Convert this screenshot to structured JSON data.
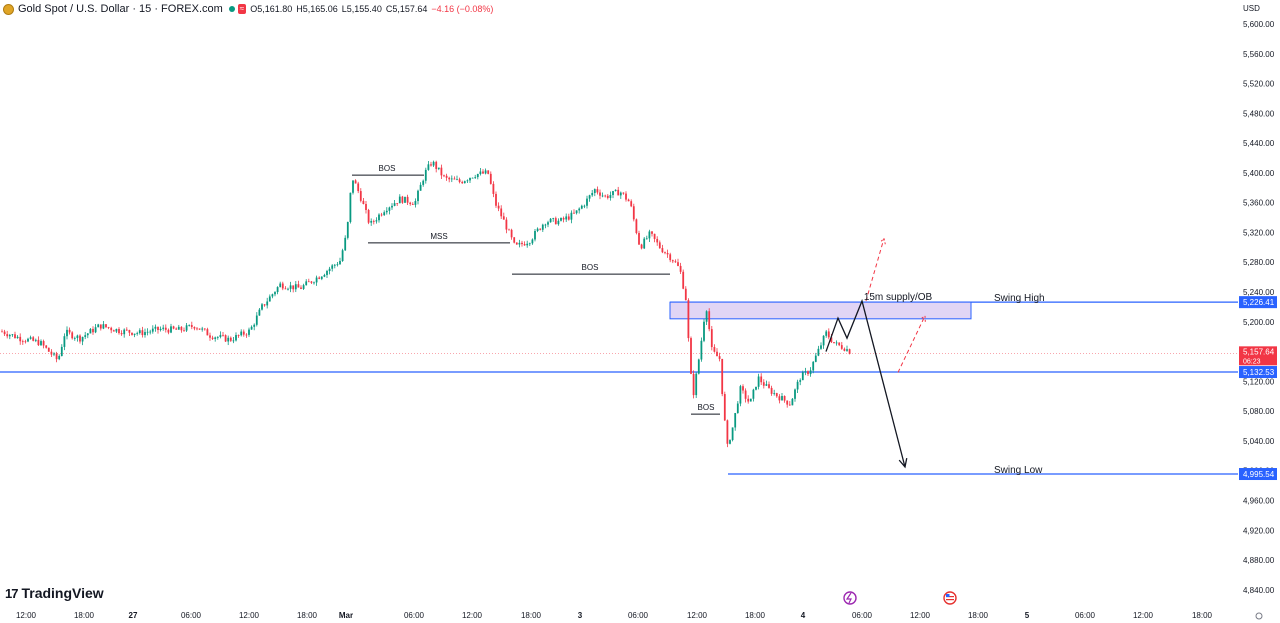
{
  "header": {
    "symbol_title": "Gold Spot / U.S. Dollar · 15 · FOREX.com",
    "open": "O5,161.80",
    "high": "H5,165.06",
    "low": "L5,155.40",
    "close": "C5,157.64",
    "change": "−4.16 (−0.08%)",
    "eq_icon": "≈"
  },
  "currency": "USD",
  "logo": {
    "mark": "17",
    "text": "TradingView"
  },
  "colors": {
    "up": "#089981",
    "down": "#f23645",
    "level": "#2962ff",
    "zone_fill": "#e1d5f5"
  },
  "chart_data": {
    "type": "candlestick",
    "y_axis": {
      "ticks": [
        "5,600.00",
        "5,560.00",
        "5,520.00",
        "5,480.00",
        "5,440.00",
        "5,400.00",
        "5,360.00",
        "5,320.00",
        "5,280.00",
        "5,240.00",
        "5,200.00",
        "5,160.00",
        "5,120.00",
        "5,080.00",
        "5,040.00",
        "5,000.00",
        "4,960.00",
        "4,920.00",
        "4,880.00",
        "4,840.00"
      ],
      "range": [
        4835,
        5620
      ]
    },
    "x_axis": {
      "ticks": [
        "12:00",
        "18:00",
        "27",
        "06:00",
        "12:00",
        "18:00",
        "Mar",
        "06:00",
        "12:00",
        "18:00",
        "3",
        "06:00",
        "12:00",
        "18:00",
        "4",
        "06:00",
        "12:00",
        "18:00",
        "5",
        "06:00",
        "12:00",
        "18:00"
      ]
    },
    "price_path": [
      [
        0,
        5188
      ],
      [
        20,
        5178
      ],
      [
        40,
        5172
      ],
      [
        58,
        5148
      ],
      [
        65,
        5186
      ],
      [
        80,
        5178
      ],
      [
        100,
        5195
      ],
      [
        120,
        5188
      ],
      [
        140,
        5185
      ],
      [
        160,
        5190
      ],
      [
        180,
        5189
      ],
      [
        195,
        5195
      ],
      [
        210,
        5182
      ],
      [
        230,
        5176
      ],
      [
        250,
        5188
      ],
      [
        262,
        5220
      ],
      [
        280,
        5250
      ],
      [
        300,
        5245
      ],
      [
        320,
        5262
      ],
      [
        340,
        5282
      ],
      [
        347,
        5320
      ],
      [
        352,
        5395
      ],
      [
        360,
        5370
      ],
      [
        370,
        5330
      ],
      [
        385,
        5352
      ],
      [
        400,
        5365
      ],
      [
        415,
        5360
      ],
      [
        425,
        5400
      ],
      [
        432,
        5415
      ],
      [
        445,
        5392
      ],
      [
        460,
        5388
      ],
      [
        475,
        5398
      ],
      [
        488,
        5400
      ],
      [
        495,
        5360
      ],
      [
        505,
        5332
      ],
      [
        515,
        5300
      ],
      [
        530,
        5310
      ],
      [
        545,
        5335
      ],
      [
        560,
        5335
      ],
      [
        575,
        5345
      ],
      [
        585,
        5360
      ],
      [
        595,
        5378
      ],
      [
        605,
        5368
      ],
      [
        620,
        5375
      ],
      [
        630,
        5360
      ],
      [
        640,
        5300
      ],
      [
        650,
        5318
      ],
      [
        660,
        5300
      ],
      [
        672,
        5285
      ],
      [
        680,
        5270
      ],
      [
        686,
        5230
      ],
      [
        690,
        5140
      ],
      [
        693,
        5100
      ],
      [
        700,
        5160
      ],
      [
        706,
        5225
      ],
      [
        712,
        5160
      ],
      [
        720,
        5150
      ],
      [
        722,
        5110
      ],
      [
        727,
        5030
      ],
      [
        733,
        5060
      ],
      [
        740,
        5110
      ],
      [
        750,
        5090
      ],
      [
        758,
        5125
      ],
      [
        768,
        5110
      ],
      [
        778,
        5100
      ],
      [
        790,
        5090
      ],
      [
        800,
        5125
      ],
      [
        810,
        5135
      ],
      [
        818,
        5160
      ],
      [
        826,
        5185
      ],
      [
        835,
        5170
      ],
      [
        845,
        5165
      ],
      [
        852,
        5158
      ]
    ],
    "last_price": "5,157.64",
    "countdown": "06:23",
    "levels": [
      {
        "label": "Swing High",
        "value": 5226.41,
        "tag": "5,226.41"
      },
      {
        "label": "",
        "value": 5132.53,
        "tag": "5,132.53"
      },
      {
        "label": "Swing Low",
        "value": 4995.54,
        "tag": "4,995.54"
      }
    ],
    "annotations": [
      {
        "text": "BOS",
        "value": 5397
      },
      {
        "text": "MSS",
        "value": 5306
      },
      {
        "text": "BOS",
        "value": 5264
      },
      {
        "text": "BOS",
        "value": 5076
      },
      {
        "text": "15m supply/OB",
        "value": 5229
      }
    ],
    "zone": {
      "label": "15m supply/OB",
      "top": 5226.41,
      "bottom": 5204
    },
    "projection": [
      [
        826,
        5160
      ],
      [
        838,
        5205
      ],
      [
        847,
        5178
      ],
      [
        862,
        5228
      ],
      [
        905,
        5005
      ]
    ],
    "alt_paths": [
      [
        [
          866,
          5228
        ],
        [
          884,
          5312
        ]
      ],
      [
        [
          898,
          5132
        ],
        [
          925,
          5208
        ]
      ]
    ]
  }
}
